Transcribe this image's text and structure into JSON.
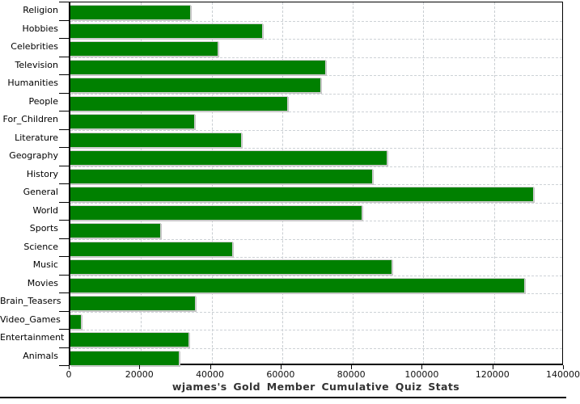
{
  "chart_data": {
    "type": "bar",
    "orientation": "horizontal",
    "title": "wjames's Gold Member Cumulative Quiz Stats",
    "categories": [
      "Religion",
      "Hobbies",
      "Celebrities",
      "Television",
      "Humanities",
      "People",
      "For_Children",
      "Literature",
      "Geography",
      "History",
      "General",
      "World",
      "Sports",
      "Science",
      "Music",
      "Movies",
      "Brain_Teasers",
      "Video_Games",
      "Entertainment",
      "Animals"
    ],
    "values": [
      34000,
      54400,
      41800,
      72200,
      70900,
      61500,
      35000,
      48300,
      89600,
      85400,
      131000,
      82400,
      25400,
      45800,
      91000,
      128500,
      35300,
      2900,
      33400,
      30800
    ],
    "xlabel": "",
    "ylabel": "",
    "xlim": [
      0,
      140000
    ],
    "x_ticks": [
      0,
      20000,
      40000,
      60000,
      80000,
      100000,
      120000,
      140000
    ],
    "x_tick_labels": [
      "0",
      "20000",
      "40000",
      "60000",
      "80000",
      "100000",
      "120000",
      "140000"
    ],
    "grid": "dashed-both-axes",
    "legend": "none",
    "colors": {
      "bar": "#008000",
      "bar_edge": "#d0d0d0",
      "gridline": "#cdd2d6",
      "axis": "#000000",
      "title_text": "#333333",
      "label_text": "#000000",
      "background": "#ffffff"
    }
  }
}
